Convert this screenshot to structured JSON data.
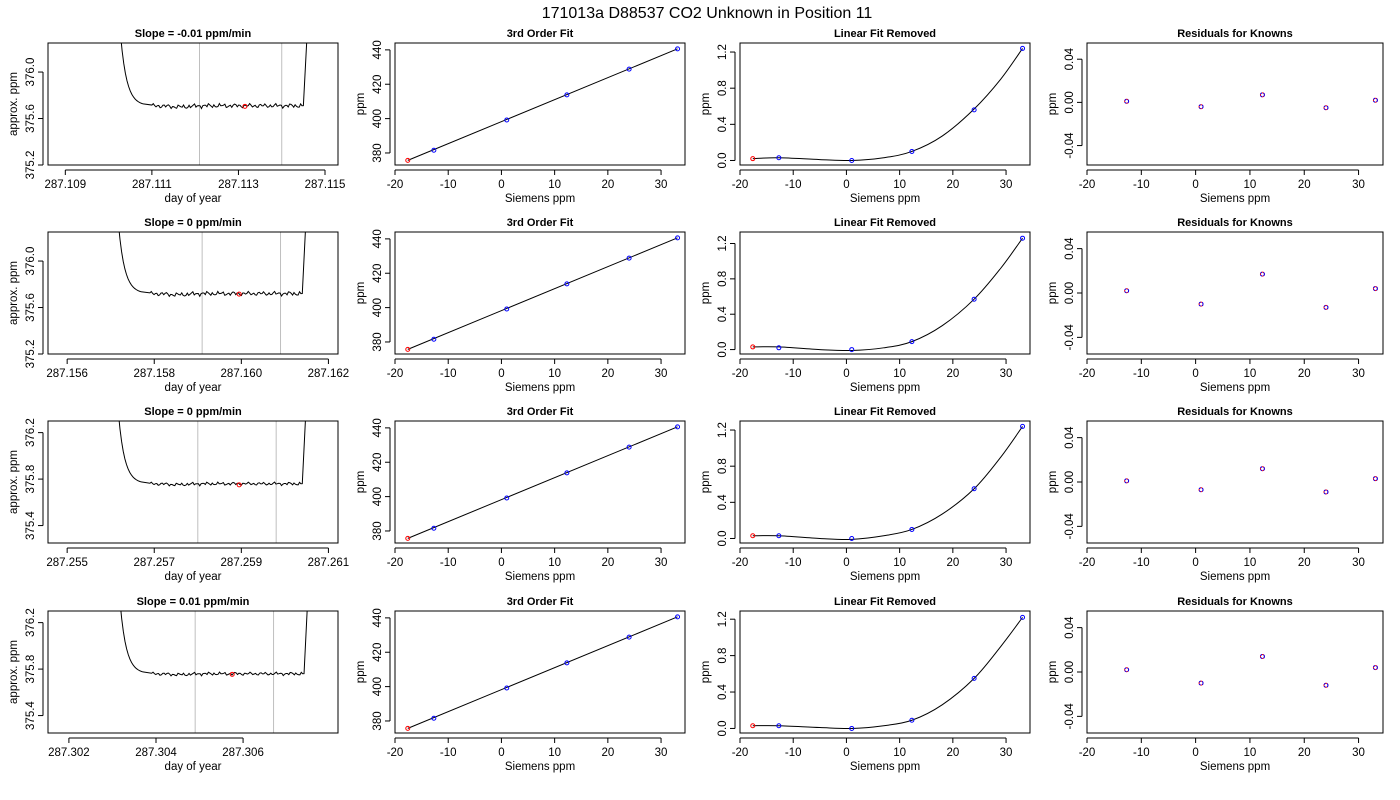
{
  "figure": {
    "title": "171013a      D88537   CO2 Unknown in Position  11"
  },
  "chart_data": [
    {
      "type": "line",
      "row": 1,
      "panel": "trace",
      "title": "Slope =  -0.01  ppm/min",
      "xlabel": "day of year",
      "ylabel": "approx. ppm",
      "xlim": [
        287.1086,
        287.1153
      ],
      "ylim": [
        375.2,
        376.25
      ],
      "xticks": [
        287.109,
        287.111,
        287.113,
        287.115
      ],
      "xtick_labels": [
        "287.109",
        "287.111",
        "287.113",
        "287.115"
      ],
      "yticks": [
        375.2,
        375.6,
        376.0
      ],
      "ytick_labels": [
        "375.2",
        "375.6",
        "376.0"
      ],
      "segment": {
        "start": 287.1102,
        "drop_end": 287.1108,
        "plateau_start": 287.111,
        "end": 287.1145,
        "rise_end": 287.11466,
        "level": 375.71,
        "amp": 0.02
      },
      "vlines": [
        287.1121,
        287.114
      ],
      "marker": {
        "x": 287.11315,
        "y": 375.705
      }
    },
    {
      "type": "line",
      "row": 1,
      "panel": "fit",
      "title": "3rd Order Fit",
      "xlabel": "Siemens ppm",
      "ylabel": "ppm",
      "xlim": [
        -20,
        34.5
      ],
      "ylim": [
        373,
        444
      ],
      "xticks": [
        -20,
        -10,
        0,
        10,
        20,
        30
      ],
      "xtick_labels": [
        "-20",
        "-10",
        "0",
        "10",
        "20",
        "30"
      ],
      "yticks": [
        380,
        400,
        420,
        440
      ],
      "ytick_labels": [
        "380",
        "400",
        "420",
        "440"
      ],
      "line": {
        "x": [
          -17.6,
          33.1
        ],
        "y": [
          375.7,
          440.6
        ]
      },
      "knowns": {
        "x": [
          -12.7,
          1.0,
          12.3,
          24.0,
          33.1
        ],
        "y": [
          381.6,
          399.2,
          413.8,
          428.8,
          440.6
        ]
      },
      "unknown": {
        "x": [
          -17.6
        ],
        "y": [
          375.7
        ]
      }
    },
    {
      "type": "line",
      "row": 1,
      "panel": "linear_removed",
      "title": "Linear Fit Removed",
      "xlabel": "Siemens ppm",
      "ylabel": "ppm",
      "xlim": [
        -20,
        34.5
      ],
      "ylim": [
        -0.05,
        1.3
      ],
      "xticks": [
        -20,
        -10,
        0,
        10,
        20,
        30
      ],
      "xtick_labels": [
        "-20",
        "-10",
        "0",
        "10",
        "20",
        "30"
      ],
      "yticks": [
        0.0,
        0.4,
        0.8,
        1.2
      ],
      "ytick_labels": [
        "0.0",
        "0.4",
        "0.8",
        "1.2"
      ],
      "curve": {
        "x": [
          -17.6,
          -12.7,
          -5,
          1,
          7,
          12.3,
          18,
          24,
          29,
          33.1
        ],
        "y": [
          0.02,
          0.03,
          0.01,
          0.0,
          0.03,
          0.1,
          0.27,
          0.57,
          0.9,
          1.24
        ]
      },
      "knowns": {
        "x": [
          -12.7,
          1.0,
          12.3,
          24.0,
          33.1
        ],
        "y": [
          0.03,
          0.0,
          0.1,
          0.56,
          1.24
        ]
      },
      "unknown": {
        "x": [
          -17.6
        ],
        "y": [
          0.02
        ]
      }
    },
    {
      "type": "scatter",
      "row": 1,
      "panel": "residuals",
      "title": "Residuals for Knowns",
      "xlabel": "Siemens ppm",
      "ylabel": "ppm",
      "xlim": [
        -20,
        34.5
      ],
      "ylim": [
        -0.058,
        0.055
      ],
      "xticks": [
        -20,
        -10,
        0,
        10,
        20,
        30
      ],
      "xtick_labels": [
        "-20",
        "-10",
        "0",
        "10",
        "20",
        "30"
      ],
      "yticks": [
        -0.04,
        0.0,
        0.04
      ],
      "ytick_labels": [
        "-0.04",
        "0.00",
        "0.04"
      ],
      "points": {
        "x": [
          -12.7,
          1.0,
          12.3,
          24.0,
          33.1
        ],
        "y": [
          0.001,
          -0.004,
          0.007,
          -0.005,
          0.002
        ]
      }
    },
    {
      "type": "line",
      "row": 2,
      "panel": "trace",
      "title": "Slope =  0  ppm/min",
      "xlabel": "day of year",
      "ylabel": "approx. ppm",
      "xlim": [
        287.15556,
        287.16222
      ],
      "ylim": [
        375.2,
        376.25
      ],
      "xticks": [
        287.156,
        287.158,
        287.16,
        287.162
      ],
      "xtick_labels": [
        "287.156",
        "287.158",
        "287.160",
        "287.162"
      ],
      "yticks": [
        375.2,
        375.6,
        376.0
      ],
      "ytick_labels": [
        "375.2",
        "375.6",
        "376.0"
      ],
      "segment": {
        "start": 287.1571,
        "drop_end": 287.1577,
        "plateau_start": 287.1579,
        "end": 287.1614,
        "rise_end": 287.16155,
        "level": 375.72,
        "amp": 0.02
      },
      "vlines": [
        287.1591,
        287.1609
      ],
      "marker": {
        "x": 287.15995,
        "y": 375.715
      }
    },
    {
      "type": "line",
      "row": 2,
      "panel": "fit",
      "title": "3rd Order Fit",
      "xlabel": "Siemens ppm",
      "ylabel": "ppm",
      "xlim": [
        -20,
        34.5
      ],
      "ylim": [
        373,
        444
      ],
      "xticks": [
        -20,
        -10,
        0,
        10,
        20,
        30
      ],
      "xtick_labels": [
        "-20",
        "-10",
        "0",
        "10",
        "20",
        "30"
      ],
      "yticks": [
        380,
        400,
        420,
        440
      ],
      "ytick_labels": [
        "380",
        "400",
        "420",
        "440"
      ],
      "line": {
        "x": [
          -17.6,
          33.1
        ],
        "y": [
          375.7,
          440.6
        ]
      },
      "knowns": {
        "x": [
          -12.7,
          1.0,
          12.3,
          24.0,
          33.1
        ],
        "y": [
          381.6,
          399.2,
          413.8,
          428.8,
          440.6
        ]
      },
      "unknown": {
        "x": [
          -17.6
        ],
        "y": [
          375.7
        ]
      }
    },
    {
      "type": "line",
      "row": 2,
      "panel": "linear_removed",
      "title": "Linear Fit Removed",
      "xlabel": "Siemens ppm",
      "ylabel": "ppm",
      "xlim": [
        -20,
        34.5
      ],
      "ylim": [
        -0.05,
        1.33
      ],
      "xticks": [
        -20,
        -10,
        0,
        10,
        20,
        30
      ],
      "xtick_labels": [
        "-20",
        "-10",
        "0",
        "10",
        "20",
        "30"
      ],
      "yticks": [
        0.0,
        0.4,
        0.8,
        1.2
      ],
      "ytick_labels": [
        "0.0",
        "0.4",
        "0.8",
        "1.2"
      ],
      "curve": {
        "x": [
          -17.6,
          -12.7,
          -5,
          1,
          7,
          12.3,
          18,
          24,
          29,
          33.1
        ],
        "y": [
          0.03,
          0.03,
          0.0,
          -0.01,
          0.02,
          0.09,
          0.27,
          0.57,
          0.92,
          1.26
        ]
      },
      "knowns": {
        "x": [
          -12.7,
          1.0,
          12.3,
          24.0,
          33.1
        ],
        "y": [
          0.02,
          0.0,
          0.09,
          0.57,
          1.26
        ]
      },
      "unknown": {
        "x": [
          -17.6
        ],
        "y": [
          0.03
        ]
      }
    },
    {
      "type": "scatter",
      "row": 2,
      "panel": "residuals",
      "title": "Residuals for Knowns",
      "xlabel": "Siemens ppm",
      "ylabel": "ppm",
      "xlim": [
        -20,
        34.5
      ],
      "ylim": [
        -0.055,
        0.055
      ],
      "xticks": [
        -20,
        -10,
        0,
        10,
        20,
        30
      ],
      "xtick_labels": [
        "-20",
        "-10",
        "0",
        "10",
        "20",
        "30"
      ],
      "yticks": [
        -0.04,
        0.0,
        0.04
      ],
      "ytick_labels": [
        "-0.04",
        "0.00",
        "0.04"
      ],
      "points": {
        "x": [
          -12.7,
          1.0,
          12.3,
          24.0,
          33.1
        ],
        "y": [
          0.002,
          -0.01,
          0.017,
          -0.013,
          0.004
        ]
      }
    },
    {
      "type": "line",
      "row": 3,
      "panel": "trace",
      "title": "Slope =  0  ppm/min",
      "xlabel": "day of year",
      "ylabel": "approx. ppm",
      "xlim": [
        287.25456,
        287.26122
      ],
      "ylim": [
        375.25,
        376.3
      ],
      "xticks": [
        287.255,
        287.257,
        287.259,
        287.261
      ],
      "xtick_labels": [
        "287.255",
        "287.257",
        "287.259",
        "287.261"
      ],
      "yticks": [
        375.4,
        375.8,
        376.2
      ],
      "ytick_labels": [
        "375.4",
        "375.8",
        "376.2"
      ],
      "segment": {
        "start": 287.2561,
        "drop_end": 287.2567,
        "plateau_start": 287.2569,
        "end": 287.2604,
        "rise_end": 287.26055,
        "level": 375.76,
        "amp": 0.015
      },
      "vlines": [
        287.258,
        287.2598
      ],
      "marker": {
        "x": 287.25895,
        "y": 375.75
      }
    },
    {
      "type": "line",
      "row": 3,
      "panel": "fit",
      "title": "3rd Order Fit",
      "xlabel": "Siemens ppm",
      "ylabel": "ppm",
      "xlim": [
        -20,
        34.5
      ],
      "ylim": [
        373,
        444
      ],
      "xticks": [
        -20,
        -10,
        0,
        10,
        20,
        30
      ],
      "xtick_labels": [
        "-20",
        "-10",
        "0",
        "10",
        "20",
        "30"
      ],
      "yticks": [
        380,
        400,
        420,
        440
      ],
      "ytick_labels": [
        "380",
        "400",
        "420",
        "440"
      ],
      "line": {
        "x": [
          -17.6,
          33.1
        ],
        "y": [
          375.7,
          440.6
        ]
      },
      "knowns": {
        "x": [
          -12.7,
          1.0,
          12.3,
          24.0,
          33.1
        ],
        "y": [
          381.6,
          399.2,
          413.8,
          428.8,
          440.6
        ]
      },
      "unknown": {
        "x": [
          -17.6
        ],
        "y": [
          375.7
        ]
      }
    },
    {
      "type": "line",
      "row": 3,
      "panel": "linear_removed",
      "title": "Linear Fit Removed",
      "xlabel": "Siemens ppm",
      "ylabel": "ppm",
      "xlim": [
        -20,
        34.5
      ],
      "ylim": [
        -0.05,
        1.3
      ],
      "xticks": [
        -20,
        -10,
        0,
        10,
        20,
        30
      ],
      "xtick_labels": [
        "-20",
        "-10",
        "0",
        "10",
        "20",
        "30"
      ],
      "yticks": [
        0.0,
        0.4,
        0.8,
        1.2
      ],
      "ytick_labels": [
        "0.0",
        "0.4",
        "0.8",
        "1.2"
      ],
      "curve": {
        "x": [
          -17.6,
          -12.7,
          -5,
          1,
          7,
          12.3,
          18,
          24,
          29,
          33.1
        ],
        "y": [
          0.03,
          0.03,
          0.0,
          -0.01,
          0.03,
          0.1,
          0.27,
          0.55,
          0.9,
          1.24
        ]
      },
      "knowns": {
        "x": [
          -12.7,
          1.0,
          12.3,
          24.0,
          33.1
        ],
        "y": [
          0.03,
          0.0,
          0.1,
          0.55,
          1.24
        ]
      },
      "unknown": {
        "x": [
          -17.6
        ],
        "y": [
          0.03
        ]
      }
    },
    {
      "type": "scatter",
      "row": 3,
      "panel": "residuals",
      "title": "Residuals for Knowns",
      "xlabel": "Siemens ppm",
      "ylabel": "ppm",
      "xlim": [
        -20,
        34.5
      ],
      "ylim": [
        -0.055,
        0.055
      ],
      "xticks": [
        -20,
        -10,
        0,
        10,
        20,
        30
      ],
      "xtick_labels": [
        "-20",
        "-10",
        "0",
        "10",
        "20",
        "30"
      ],
      "yticks": [
        -0.04,
        0.0,
        0.04
      ],
      "ytick_labels": [
        "-0.04",
        "0.00",
        "0.04"
      ],
      "points": {
        "x": [
          -12.7,
          1.0,
          12.3,
          24.0,
          33.1
        ],
        "y": [
          0.001,
          -0.007,
          0.012,
          -0.009,
          0.003
        ]
      }
    },
    {
      "type": "line",
      "row": 4,
      "panel": "trace",
      "title": "Slope =  0.01  ppm/min",
      "xlabel": "day of year",
      "ylabel": "approx. ppm",
      "xlim": [
        287.30152,
        287.30818
      ],
      "ylim": [
        375.25,
        376.3
      ],
      "xticks": [
        287.302,
        287.304,
        287.306
      ],
      "xtick_labels": [
        "287.302",
        "287.304",
        "287.306"
      ],
      "yticks": [
        375.4,
        375.8,
        376.2
      ],
      "ytick_labels": [
        "375.4",
        "375.8",
        "376.2"
      ],
      "segment": {
        "start": 287.3031,
        "drop_end": 287.3037,
        "plateau_start": 287.3039,
        "end": 287.3074,
        "rise_end": 287.30755,
        "level": 375.76,
        "amp": 0.015
      },
      "vlines": [
        287.3049,
        287.3067
      ],
      "marker": {
        "x": 287.30575,
        "y": 375.755
      }
    },
    {
      "type": "line",
      "row": 4,
      "panel": "fit",
      "title": "3rd Order Fit",
      "xlabel": "Siemens ppm",
      "ylabel": "ppm",
      "xlim": [
        -20,
        34.5
      ],
      "ylim": [
        373,
        444
      ],
      "xticks": [
        -20,
        -10,
        0,
        10,
        20,
        30
      ],
      "xtick_labels": [
        "-20",
        "-10",
        "0",
        "10",
        "20",
        "30"
      ],
      "yticks": [
        380,
        400,
        420,
        440
      ],
      "ytick_labels": [
        "380",
        "400",
        "420",
        "440"
      ],
      "line": {
        "x": [
          -17.6,
          33.1
        ],
        "y": [
          375.7,
          440.6
        ]
      },
      "knowns": {
        "x": [
          -12.7,
          1.0,
          12.3,
          24.0,
          33.1
        ],
        "y": [
          381.6,
          399.2,
          413.8,
          428.8,
          440.6
        ]
      },
      "unknown": {
        "x": [
          -17.6
        ],
        "y": [
          375.7
        ]
      }
    },
    {
      "type": "line",
      "row": 4,
      "panel": "linear_removed",
      "title": "Linear Fit Removed",
      "xlabel": "Siemens ppm",
      "ylabel": "ppm",
      "xlim": [
        -20,
        34.5
      ],
      "ylim": [
        -0.05,
        1.29
      ],
      "xticks": [
        -20,
        -10,
        0,
        10,
        20,
        30
      ],
      "xtick_labels": [
        "-20",
        "-10",
        "0",
        "10",
        "20",
        "30"
      ],
      "yticks": [
        0.0,
        0.4,
        0.8,
        1.2
      ],
      "ytick_labels": [
        "0.0",
        "0.4",
        "0.8",
        "1.2"
      ],
      "curve": {
        "x": [
          -17.6,
          -12.7,
          -5,
          1,
          7,
          12.3,
          18,
          24,
          29,
          33.1
        ],
        "y": [
          0.03,
          0.03,
          0.01,
          0.0,
          0.03,
          0.09,
          0.26,
          0.55,
          0.9,
          1.22
        ]
      },
      "knowns": {
        "x": [
          -12.7,
          1.0,
          12.3,
          24.0,
          33.1
        ],
        "y": [
          0.03,
          0.0,
          0.09,
          0.55,
          1.22
        ]
      },
      "unknown": {
        "x": [
          -17.6
        ],
        "y": [
          0.03
        ]
      }
    },
    {
      "type": "scatter",
      "row": 4,
      "panel": "residuals",
      "title": "Residuals for Knowns",
      "xlabel": "Siemens ppm",
      "ylabel": "ppm",
      "xlim": [
        -20,
        34.5
      ],
      "ylim": [
        -0.055,
        0.055
      ],
      "xticks": [
        -20,
        -10,
        0,
        10,
        20,
        30
      ],
      "xtick_labels": [
        "-20",
        "-10",
        "0",
        "10",
        "20",
        "30"
      ],
      "yticks": [
        -0.04,
        0.0,
        0.04
      ],
      "ytick_labels": [
        "-0.04",
        "0.00",
        "0.04"
      ],
      "points": {
        "x": [
          -12.7,
          1.0,
          12.3,
          24.0,
          33.1
        ],
        "y": [
          0.002,
          -0.01,
          0.014,
          -0.012,
          0.004
        ]
      }
    }
  ]
}
